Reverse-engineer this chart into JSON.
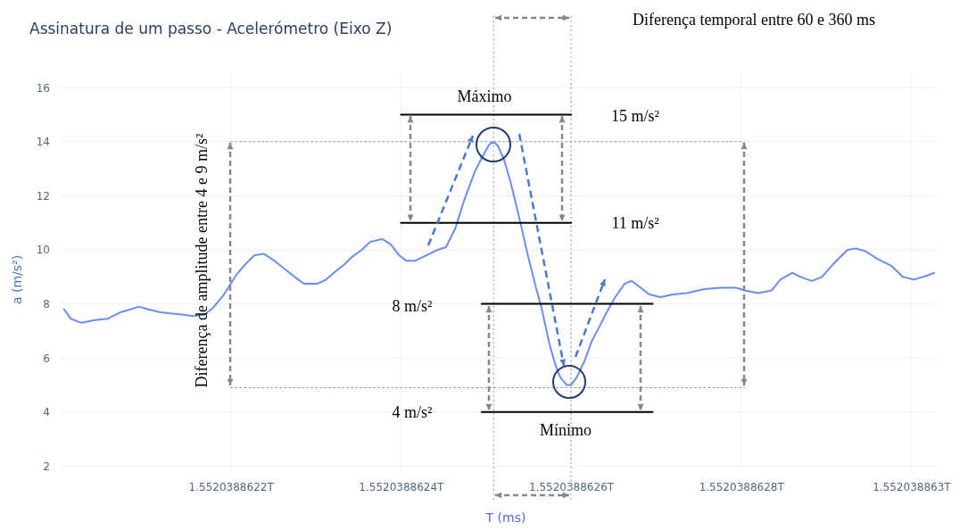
{
  "chart_data": {
    "type": "line",
    "title": "Assinatura de um passo - Acelerómetro (Eixo Z)",
    "xlabel": "T (ms)",
    "ylabel": "a (m/s²)",
    "xlim": [
      1552038862000,
      1552038863030
    ],
    "ylim": [
      1.85,
      16.6
    ],
    "xticks": [
      {
        "value": 1552038862200,
        "label": "1.5520388622T"
      },
      {
        "value": 1552038862400,
        "label": "1.5520388624T"
      },
      {
        "value": 1552038862600,
        "label": "1.5520388626T"
      },
      {
        "value": 1552038862800,
        "label": "1.5520388628T"
      },
      {
        "value": 1552038863000,
        "label": "1.552038863T"
      }
    ],
    "yticks": [
      2,
      4,
      6,
      8,
      10,
      12,
      14,
      16
    ],
    "grid": true,
    "marker": "none",
    "line_style": "solid",
    "series": [
      {
        "color": "#6b8cf3",
        "x": [
          1552038862004,
          1552038862012,
          1552038862024,
          1552038862040,
          1552038862055,
          1552038862071,
          1552038862082,
          1552038862092,
          1552038862103,
          1552038862116,
          1552038862129,
          1552038862145,
          1552038862155,
          1552038862169,
          1552038862179,
          1552038862192,
          1552038862200,
          1552038862207,
          1552038862218,
          1552038862228,
          1552038862239,
          1552038862249,
          1552038862263,
          1552038862275,
          1552038862286,
          1552038862302,
          1552038862312,
          1552038862323,
          1552038862333,
          1552038862343,
          1552038862354,
          1552038862364,
          1552038862378,
          1552038862388,
          1552038862398,
          1552038862406,
          1552038862417,
          1552038862430,
          1552038862443,
          1552038862453,
          1552038862464,
          1552038862474,
          1552038862487,
          1552038862495,
          1552038862504,
          1552038862509,
          1552038862514,
          1552038862521,
          1552038862529,
          1552038862539,
          1552038862550,
          1552038862558,
          1552038862565,
          1552038862574,
          1552038862581,
          1552038862587,
          1552038862595,
          1552038862600,
          1552038862607,
          1552038862616,
          1552038862624,
          1552038862634,
          1552038862642,
          1552038862652,
          1552038862663,
          1552038862671,
          1552038862682,
          1552038862692,
          1552038862705,
          1552038862720,
          1552038862736,
          1552038862757,
          1552038862776,
          1552038862794,
          1552038862804,
          1552038862820,
          1552038862836,
          1552038862846,
          1552038862860,
          1552038862870,
          1552038862883,
          1552038862895,
          1552038862909,
          1552038862925,
          1552038862935,
          1552038862946,
          1552038862961,
          1552038862977,
          1552038862990,
          1552038863003,
          1552038863019,
          1552038863027
        ],
        "values": [
          7.8,
          7.45,
          7.3,
          7.4,
          7.45,
          7.7,
          7.8,
          7.9,
          7.8,
          7.7,
          7.65,
          7.6,
          7.55,
          7.6,
          7.85,
          8.35,
          8.75,
          9.1,
          9.5,
          9.8,
          9.85,
          9.65,
          9.3,
          9.0,
          8.75,
          8.75,
          8.9,
          9.2,
          9.45,
          9.75,
          10.0,
          10.3,
          10.4,
          10.2,
          9.8,
          9.6,
          9.6,
          9.8,
          10.0,
          10.1,
          10.8,
          11.8,
          12.9,
          13.4,
          13.9,
          14.0,
          13.85,
          13.35,
          12.5,
          11.2,
          9.7,
          8.7,
          7.9,
          6.6,
          5.8,
          5.3,
          5.0,
          5.0,
          5.3,
          5.9,
          6.6,
          7.2,
          7.7,
          8.25,
          8.75,
          8.85,
          8.6,
          8.35,
          8.25,
          8.35,
          8.4,
          8.55,
          8.6,
          8.6,
          8.5,
          8.4,
          8.5,
          8.9,
          9.15,
          9.0,
          8.85,
          9.0,
          9.5,
          10.0,
          10.05,
          9.95,
          9.65,
          9.4,
          9.0,
          8.9,
          9.05,
          9.15
        ]
      },
      {
        "color": "#000000",
        "x": [
          1552038862400,
          1552038862600
        ],
        "values": [
          15,
          15
        ]
      },
      {
        "color": "#000000",
        "x": [
          1552038862400,
          1552038862600
        ],
        "values": [
          11,
          11
        ]
      },
      {
        "color": "#000000",
        "x": [
          1552038862495,
          1552038862696
        ],
        "values": [
          8,
          8
        ]
      },
      {
        "color": "#000000",
        "x": [
          1552038862495,
          1552038862696
        ],
        "values": [
          4,
          4
        ]
      },
      {
        "color": "#999999",
        "line_style": "dotted",
        "x": [
          1552038862200,
          1552038862804
        ],
        "values": [
          14,
          14
        ]
      },
      {
        "color": "#999999",
        "line_style": "dotted",
        "x": [
          1552038862200,
          1552038862804
        ],
        "values": [
          4.9,
          4.9
        ]
      }
    ],
    "ref_lines": [
      {
        "axis": "x",
        "value": 1552038862509,
        "color": "#999999",
        "line_style": "dotted"
      },
      {
        "axis": "x",
        "value": 1552038862600,
        "color": "#999999",
        "line_style": "dotted"
      }
    ],
    "annotations": [
      "Diferença temporal entre 60 e 360 ms",
      "Diferença de amplitude entre 4 e 9 m/s²",
      "Máximo",
      "15 m/s²",
      "11 m/s²",
      "8 m/s²",
      "4 m/s²",
      "Mínimo"
    ]
  }
}
